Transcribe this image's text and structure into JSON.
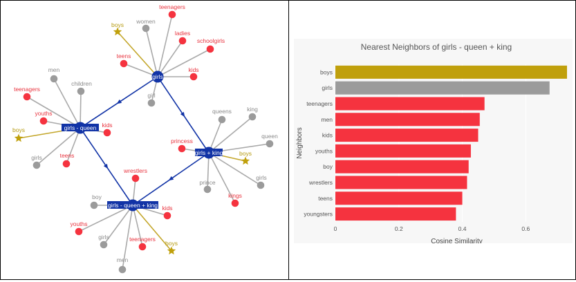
{
  "colors": {
    "red": "#f5333f",
    "gray": "#9b9b9b",
    "gold": "#c0a00c",
    "hub": "#1133a6",
    "edge_gray": "#a9a9a9",
    "edge_gold": "#c3a62a",
    "label_bg": "#1133a6"
  },
  "graph": {
    "hubs": [
      {
        "id": "girls",
        "label": "girls"
      },
      {
        "id": "gmq",
        "label": "girls - queen"
      },
      {
        "id": "gk",
        "label": "girls + king"
      },
      {
        "id": "gmqk",
        "label": "girls - queen + king"
      }
    ],
    "hub_links": [
      {
        "from": "girls",
        "to": "gmq"
      },
      {
        "from": "girls",
        "to": "gk"
      },
      {
        "from": "gmq",
        "to": "gmqk"
      },
      {
        "from": "gk",
        "to": "gmqk"
      }
    ],
    "neighbors": {
      "girls": [
        {
          "label": "teenagers",
          "color": "red"
        },
        {
          "label": "women",
          "color": "gray"
        },
        {
          "label": "boys",
          "color": "gold"
        },
        {
          "label": "ladies",
          "color": "red"
        },
        {
          "label": "schoolgirls",
          "color": "red"
        },
        {
          "label": "teens",
          "color": "red"
        },
        {
          "label": "kids",
          "color": "red"
        },
        {
          "label": "girl",
          "color": "gray"
        }
      ],
      "gmq": [
        {
          "label": "men",
          "color": "gray"
        },
        {
          "label": "children",
          "color": "gray"
        },
        {
          "label": "teenagers",
          "color": "red"
        },
        {
          "label": "youths",
          "color": "red"
        },
        {
          "label": "boys",
          "color": "gold"
        },
        {
          "label": "kids",
          "color": "red"
        },
        {
          "label": "girls",
          "color": "gray"
        },
        {
          "label": "teens",
          "color": "red"
        }
      ],
      "gk": [
        {
          "label": "queens",
          "color": "gray"
        },
        {
          "label": "king",
          "color": "gray"
        },
        {
          "label": "queen",
          "color": "gray"
        },
        {
          "label": "princess",
          "color": "red"
        },
        {
          "label": "boys",
          "color": "gold"
        },
        {
          "label": "girls",
          "color": "gray"
        },
        {
          "label": "prince",
          "color": "gray"
        },
        {
          "label": "kings",
          "color": "red"
        }
      ],
      "gmqk": [
        {
          "label": "wrestlers",
          "color": "red"
        },
        {
          "label": "boy",
          "color": "gray"
        },
        {
          "label": "kids",
          "color": "red"
        },
        {
          "label": "youths",
          "color": "red"
        },
        {
          "label": "girls",
          "color": "gray"
        },
        {
          "label": "teenagers",
          "color": "red"
        },
        {
          "label": "boys",
          "color": "gold"
        },
        {
          "label": "men",
          "color": "gray"
        }
      ]
    }
  },
  "chart_data": {
    "type": "bar",
    "orientation": "horizontal",
    "title": "Nearest Neighbors of girls - queen + king",
    "xlabel": "Cosine Similarity",
    "ylabel": "Neighbors",
    "xlim": [
      0,
      0.73
    ],
    "xticks": [
      0,
      0.2,
      0.4,
      0.6
    ],
    "xtick_labels": [
      "0",
      "0.2",
      "0.4",
      "0.6"
    ],
    "categories": [
      "boys",
      "girls",
      "teenagers",
      "men",
      "kids",
      "youths",
      "boy",
      "wrestlers",
      "teens",
      "youngsters"
    ],
    "values": [
      0.73,
      0.675,
      0.47,
      0.455,
      0.45,
      0.427,
      0.42,
      0.415,
      0.4,
      0.38
    ],
    "bar_colors": [
      "gold",
      "gray",
      "red",
      "red",
      "red",
      "red",
      "red",
      "red",
      "red",
      "red"
    ]
  }
}
